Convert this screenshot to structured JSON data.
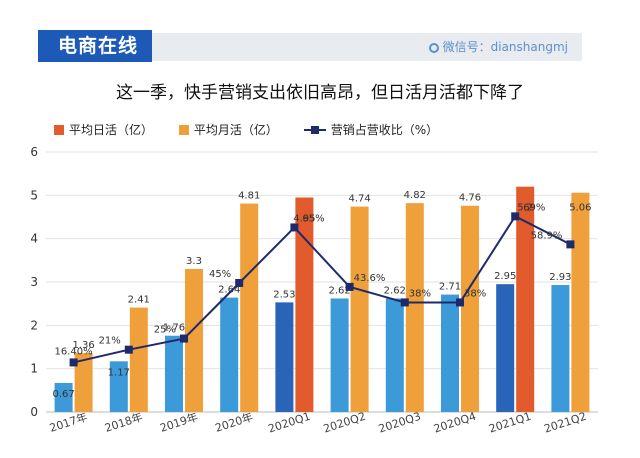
{
  "brand": "电商在线",
  "wechat": "微信号：dianshangmj",
  "chart_data": {
    "type": "bar",
    "title": "这一季，快手营销支出依旧高昂，但日活月活都下降了",
    "categories": [
      "2017年",
      "2018年",
      "2019年",
      "2020年",
      "2020Q1",
      "2020Q2",
      "2020Q3",
      "2020Q4",
      "2021Q1",
      "2021Q2"
    ],
    "series": [
      {
        "name": "平均日活（亿）",
        "type": "bar",
        "values": [
          0.67,
          1.17,
          1.76,
          2.64,
          2.53,
          2.62,
          2.62,
          2.71,
          2.95,
          2.93
        ]
      },
      {
        "name": "平均月活（亿）",
        "type": "bar",
        "values": [
          1.36,
          2.41,
          3.3,
          4.81,
          4.95,
          4.74,
          4.82,
          4.76,
          5.2,
          5.06
        ]
      },
      {
        "name": "营销占营收比（%）",
        "type": "line",
        "values": [
          16.4,
          21,
          25,
          45,
          65,
          43.6,
          38,
          38,
          69,
          58.9
        ],
        "labels": [
          "16.40%",
          "21%",
          "25%",
          "45%",
          "65%",
          "43.6%",
          "38%",
          "38%",
          "69%",
          "58.9%"
        ]
      }
    ],
    "daily_labels": [
      "0.67",
      "1.17",
      "1.76",
      "2.64",
      "2.53",
      "2.62",
      "2.62",
      "2.71",
      "2.95",
      "2.93"
    ],
    "monthly_labels": [
      "1.36",
      "2.41",
      "3.3",
      "4.81",
      "4.95",
      "4.74",
      "4.82",
      "4.76",
      "5.2",
      "5.06"
    ],
    "ylim": [
      0,
      6
    ],
    "yticks": [
      "0",
      "1",
      "2",
      "3",
      "4",
      "5",
      "6"
    ],
    "grid": true,
    "legend_position": "top-left",
    "colors": {
      "daily": "#3d9ad9",
      "monthly": "#f0a03a",
      "highlight": "#e15b2c",
      "line": "#1f2a6b"
    },
    "highlight": {
      "2020Q1": "monthly",
      "2021Q1": "monthly",
      "2020Q1_daily": "#2a64b8",
      "2021Q1_daily": "#2a64b8"
    }
  }
}
